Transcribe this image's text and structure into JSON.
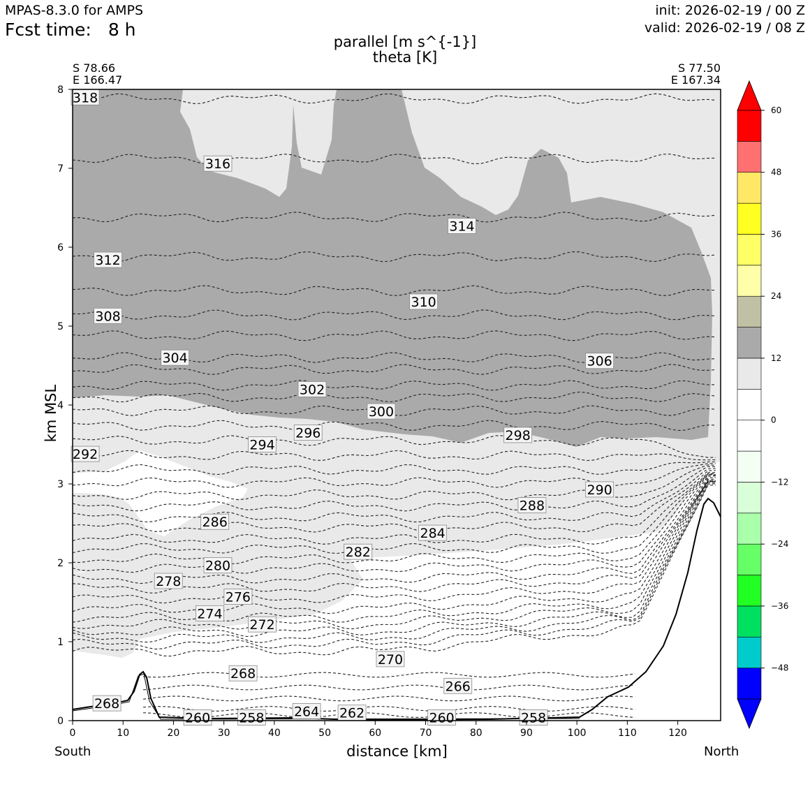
{
  "header": {
    "model": "MPAS-8.3.0 for AMPS",
    "fcst_label": "Fcst time:",
    "fcst_value": "8 h",
    "init": "init: 2026-02-19 / 00 Z",
    "valid": "valid: 2026-02-19 / 08 Z"
  },
  "corners": {
    "left_lat": "S 78.66",
    "left_lon": "E 166.47",
    "right_lat": "S 77.50",
    "right_lon": "E 167.34"
  },
  "ends": {
    "south": "South",
    "north": "North"
  },
  "chart_data": {
    "type": "cross-section contour",
    "title": "parallel [m s^{-1}]",
    "subtitle": "theta [K]",
    "xlabel": "distance [km]",
    "ylabel": "km MSL",
    "xlim": [
      0,
      128.5
    ],
    "ylim": [
      0,
      8
    ],
    "xticks": [
      0,
      10,
      20,
      30,
      40,
      50,
      60,
      70,
      80,
      90,
      100,
      110,
      120
    ],
    "yticks": [
      0,
      1,
      2,
      3,
      4,
      5,
      6,
      7,
      8
    ],
    "colorbar": {
      "ticks": [
        "60",
        "48",
        "36",
        "24",
        "12",
        "0",
        "−12",
        "−24",
        "−36",
        "−48"
      ],
      "levels": [
        -54,
        -48,
        -42,
        -36,
        -30,
        -24,
        -18,
        -12,
        -6,
        0,
        6,
        12,
        18,
        24,
        30,
        36,
        42,
        48,
        54,
        60
      ],
      "colors": [
        "#0000ff",
        "#00cccc",
        "#00e060",
        "#22ff22",
        "#66ff66",
        "#aaffaa",
        "#d8ffd8",
        "#f2fff2",
        "#ffffff",
        "#ffffff",
        "#e9e9e9",
        "#aaaaaa",
        "#c0c0a4",
        "#ffffaa",
        "#ffff66",
        "#ffff22",
        "#ffe866",
        "#ff7070",
        "#ff0000"
      ],
      "extend_min_color": "#0000ff",
      "extend_max_color": "#ff0000"
    },
    "theta_labels": [
      {
        "text": "318",
        "x": 2.5,
        "y": 7.9
      },
      {
        "text": "316",
        "x": 28.8,
        "y": 7.06
      },
      {
        "text": "314",
        "x": 77.2,
        "y": 6.27
      },
      {
        "text": "312",
        "x": 7.0,
        "y": 5.84
      },
      {
        "text": "310",
        "x": 69.6,
        "y": 5.31
      },
      {
        "text": "308",
        "x": 7.0,
        "y": 5.13
      },
      {
        "text": "306",
        "x": 104.5,
        "y": 4.56
      },
      {
        "text": "304",
        "x": 20.3,
        "y": 4.6
      },
      {
        "text": "302",
        "x": 47.5,
        "y": 4.2
      },
      {
        "text": "300",
        "x": 61.2,
        "y": 3.92
      },
      {
        "text": "298",
        "x": 88.3,
        "y": 3.62
      },
      {
        "text": "296",
        "x": 46.7,
        "y": 3.65
      },
      {
        "text": "294",
        "x": 37.6,
        "y": 3.5
      },
      {
        "text": "292",
        "x": 2.5,
        "y": 3.38
      },
      {
        "text": "290",
        "x": 104.5,
        "y": 2.93
      },
      {
        "text": "288",
        "x": 91.1,
        "y": 2.73
      },
      {
        "text": "286",
        "x": 28.2,
        "y": 2.52
      },
      {
        "text": "284",
        "x": 71.4,
        "y": 2.38
      },
      {
        "text": "282",
        "x": 56.6,
        "y": 2.14
      },
      {
        "text": "280",
        "x": 28.8,
        "y": 1.97
      },
      {
        "text": "278",
        "x": 19.0,
        "y": 1.77
      },
      {
        "text": "276",
        "x": 32.8,
        "y": 1.57
      },
      {
        "text": "274",
        "x": 27.2,
        "y": 1.36
      },
      {
        "text": "272",
        "x": 37.6,
        "y": 1.22
      },
      {
        "text": "270",
        "x": 63.0,
        "y": 0.78
      },
      {
        "text": "268",
        "x": 33.8,
        "y": 0.6
      },
      {
        "text": "268",
        "x": 6.8,
        "y": 0.22
      },
      {
        "text": "266",
        "x": 76.4,
        "y": 0.44
      },
      {
        "text": "264",
        "x": 46.4,
        "y": 0.12
      },
      {
        "text": "262",
        "x": 55.4,
        "y": 0.1
      },
      {
        "text": "260",
        "x": 24.8,
        "y": 0.04
      },
      {
        "text": "258",
        "x": 35.5,
        "y": 0.04
      },
      {
        "text": "260",
        "x": 73.2,
        "y": 0.04
      },
      {
        "text": "258",
        "x": 91.4,
        "y": 0.04
      }
    ]
  }
}
